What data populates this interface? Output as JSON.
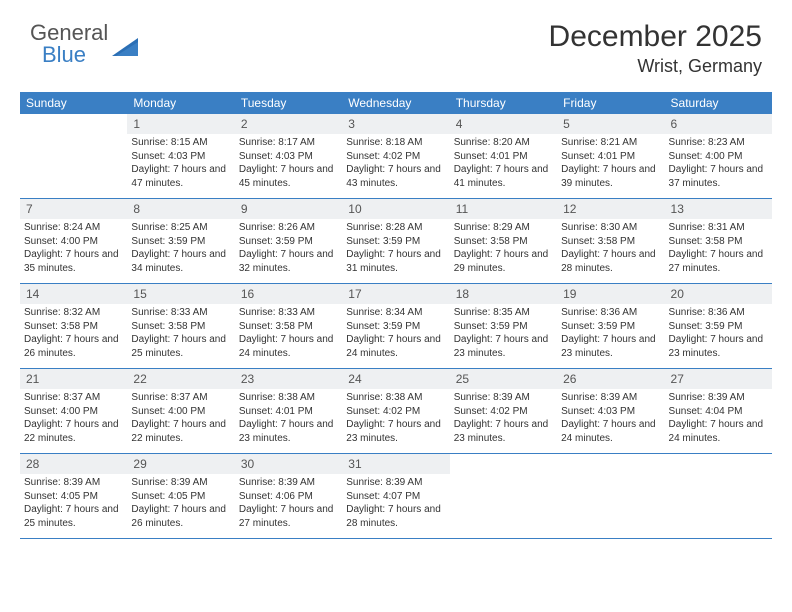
{
  "logo": {
    "part1": "General",
    "part2": "Blue"
  },
  "title": "December 2025",
  "location": "Wrist, Germany",
  "colors": {
    "header_bg": "#3a7fc4",
    "header_text": "#ffffff",
    "daynum_bg": "#eef0f2",
    "text": "#333333",
    "border": "#3a7fc4"
  },
  "day_names": [
    "Sunday",
    "Monday",
    "Tuesday",
    "Wednesday",
    "Thursday",
    "Friday",
    "Saturday"
  ],
  "weeks": [
    [
      {
        "n": "",
        "sr": "",
        "ss": "",
        "dl": ""
      },
      {
        "n": "1",
        "sr": "Sunrise: 8:15 AM",
        "ss": "Sunset: 4:03 PM",
        "dl": "Daylight: 7 hours and 47 minutes."
      },
      {
        "n": "2",
        "sr": "Sunrise: 8:17 AM",
        "ss": "Sunset: 4:03 PM",
        "dl": "Daylight: 7 hours and 45 minutes."
      },
      {
        "n": "3",
        "sr": "Sunrise: 8:18 AM",
        "ss": "Sunset: 4:02 PM",
        "dl": "Daylight: 7 hours and 43 minutes."
      },
      {
        "n": "4",
        "sr": "Sunrise: 8:20 AM",
        "ss": "Sunset: 4:01 PM",
        "dl": "Daylight: 7 hours and 41 minutes."
      },
      {
        "n": "5",
        "sr": "Sunrise: 8:21 AM",
        "ss": "Sunset: 4:01 PM",
        "dl": "Daylight: 7 hours and 39 minutes."
      },
      {
        "n": "6",
        "sr": "Sunrise: 8:23 AM",
        "ss": "Sunset: 4:00 PM",
        "dl": "Daylight: 7 hours and 37 minutes."
      }
    ],
    [
      {
        "n": "7",
        "sr": "Sunrise: 8:24 AM",
        "ss": "Sunset: 4:00 PM",
        "dl": "Daylight: 7 hours and 35 minutes."
      },
      {
        "n": "8",
        "sr": "Sunrise: 8:25 AM",
        "ss": "Sunset: 3:59 PM",
        "dl": "Daylight: 7 hours and 34 minutes."
      },
      {
        "n": "9",
        "sr": "Sunrise: 8:26 AM",
        "ss": "Sunset: 3:59 PM",
        "dl": "Daylight: 7 hours and 32 minutes."
      },
      {
        "n": "10",
        "sr": "Sunrise: 8:28 AM",
        "ss": "Sunset: 3:59 PM",
        "dl": "Daylight: 7 hours and 31 minutes."
      },
      {
        "n": "11",
        "sr": "Sunrise: 8:29 AM",
        "ss": "Sunset: 3:58 PM",
        "dl": "Daylight: 7 hours and 29 minutes."
      },
      {
        "n": "12",
        "sr": "Sunrise: 8:30 AM",
        "ss": "Sunset: 3:58 PM",
        "dl": "Daylight: 7 hours and 28 minutes."
      },
      {
        "n": "13",
        "sr": "Sunrise: 8:31 AM",
        "ss": "Sunset: 3:58 PM",
        "dl": "Daylight: 7 hours and 27 minutes."
      }
    ],
    [
      {
        "n": "14",
        "sr": "Sunrise: 8:32 AM",
        "ss": "Sunset: 3:58 PM",
        "dl": "Daylight: 7 hours and 26 minutes."
      },
      {
        "n": "15",
        "sr": "Sunrise: 8:33 AM",
        "ss": "Sunset: 3:58 PM",
        "dl": "Daylight: 7 hours and 25 minutes."
      },
      {
        "n": "16",
        "sr": "Sunrise: 8:33 AM",
        "ss": "Sunset: 3:58 PM",
        "dl": "Daylight: 7 hours and 24 minutes."
      },
      {
        "n": "17",
        "sr": "Sunrise: 8:34 AM",
        "ss": "Sunset: 3:59 PM",
        "dl": "Daylight: 7 hours and 24 minutes."
      },
      {
        "n": "18",
        "sr": "Sunrise: 8:35 AM",
        "ss": "Sunset: 3:59 PM",
        "dl": "Daylight: 7 hours and 23 minutes."
      },
      {
        "n": "19",
        "sr": "Sunrise: 8:36 AM",
        "ss": "Sunset: 3:59 PM",
        "dl": "Daylight: 7 hours and 23 minutes."
      },
      {
        "n": "20",
        "sr": "Sunrise: 8:36 AM",
        "ss": "Sunset: 3:59 PM",
        "dl": "Daylight: 7 hours and 23 minutes."
      }
    ],
    [
      {
        "n": "21",
        "sr": "Sunrise: 8:37 AM",
        "ss": "Sunset: 4:00 PM",
        "dl": "Daylight: 7 hours and 22 minutes."
      },
      {
        "n": "22",
        "sr": "Sunrise: 8:37 AM",
        "ss": "Sunset: 4:00 PM",
        "dl": "Daylight: 7 hours and 22 minutes."
      },
      {
        "n": "23",
        "sr": "Sunrise: 8:38 AM",
        "ss": "Sunset: 4:01 PM",
        "dl": "Daylight: 7 hours and 23 minutes."
      },
      {
        "n": "24",
        "sr": "Sunrise: 8:38 AM",
        "ss": "Sunset: 4:02 PM",
        "dl": "Daylight: 7 hours and 23 minutes."
      },
      {
        "n": "25",
        "sr": "Sunrise: 8:39 AM",
        "ss": "Sunset: 4:02 PM",
        "dl": "Daylight: 7 hours and 23 minutes."
      },
      {
        "n": "26",
        "sr": "Sunrise: 8:39 AM",
        "ss": "Sunset: 4:03 PM",
        "dl": "Daylight: 7 hours and 24 minutes."
      },
      {
        "n": "27",
        "sr": "Sunrise: 8:39 AM",
        "ss": "Sunset: 4:04 PM",
        "dl": "Daylight: 7 hours and 24 minutes."
      }
    ],
    [
      {
        "n": "28",
        "sr": "Sunrise: 8:39 AM",
        "ss": "Sunset: 4:05 PM",
        "dl": "Daylight: 7 hours and 25 minutes."
      },
      {
        "n": "29",
        "sr": "Sunrise: 8:39 AM",
        "ss": "Sunset: 4:05 PM",
        "dl": "Daylight: 7 hours and 26 minutes."
      },
      {
        "n": "30",
        "sr": "Sunrise: 8:39 AM",
        "ss": "Sunset: 4:06 PM",
        "dl": "Daylight: 7 hours and 27 minutes."
      },
      {
        "n": "31",
        "sr": "Sunrise: 8:39 AM",
        "ss": "Sunset: 4:07 PM",
        "dl": "Daylight: 7 hours and 28 minutes."
      },
      {
        "n": "",
        "sr": "",
        "ss": "",
        "dl": ""
      },
      {
        "n": "",
        "sr": "",
        "ss": "",
        "dl": ""
      },
      {
        "n": "",
        "sr": "",
        "ss": "",
        "dl": ""
      }
    ]
  ]
}
